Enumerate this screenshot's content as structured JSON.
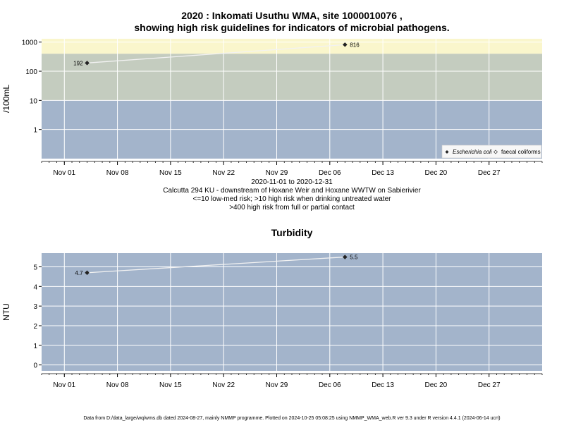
{
  "chart_data": [
    {
      "type": "line",
      "title_line1": "2020 : Inkomati Usuthu WMA, site 1000010076 ,",
      "title_line2": "showing high risk guidelines for indicators of microbial pathogens.",
      "ylabel": "/100mL",
      "yscale": "log",
      "ylim": [
        0.1,
        1300
      ],
      "yticks": [
        "1000",
        "100",
        "10",
        "1"
      ],
      "xlim": [
        "2020-10-29",
        "2021-01-03"
      ],
      "xticks": [
        "Nov 01",
        "Nov 08",
        "Nov 15",
        "Nov 22",
        "Nov 29",
        "Dec 06",
        "Dec 13",
        "Dec 20",
        "Dec 27"
      ],
      "bands": [
        {
          "from": 0.1,
          "to": 10,
          "color": "#a3b4cb",
          "label": "<=10 low-med risk"
        },
        {
          "from": 10,
          "to": 400,
          "color": "#c4ccbf",
          "label": ">10 high risk when drinking untreated water"
        },
        {
          "from": 400,
          "to": 1300,
          "color": "#faf6cc",
          "label": ">400 high risk from full or partial contact"
        }
      ],
      "series": [
        {
          "name": "Escherichia coli",
          "points": [
            {
              "x": "2020-11-04",
              "y": 192,
              "label": "192"
            },
            {
              "x": "2020-12-08",
              "y": 816,
              "label": "816"
            }
          ]
        }
      ],
      "legend": {
        "position": "bottom-right",
        "items": [
          "Escherichia coli",
          "faecal coliforms"
        ]
      },
      "subtitle_lines": [
        "2020-11-01 to 2020-12-31",
        "Calcutta 294 KU - downstream of Hoxane Weir and Hoxane WWTW on Sabierivier",
        "<=10 low-med risk; >10 high risk when drinking untreated water",
        ">400 high risk from full or partial contact"
      ],
      "grid": true
    },
    {
      "type": "line",
      "title": "Turbidity",
      "ylabel": "NTU",
      "ylim": [
        -0.3,
        5.7
      ],
      "yticks": [
        "0",
        "1",
        "2",
        "3",
        "4",
        "5"
      ],
      "xlim": [
        "2020-10-29",
        "2021-01-03"
      ],
      "xticks": [
        "Nov 01",
        "Nov 08",
        "Nov 15",
        "Nov 22",
        "Nov 29",
        "Dec 06",
        "Dec 13",
        "Dec 20",
        "Dec 27"
      ],
      "background": "#a3b4cb",
      "series": [
        {
          "name": "Turbidity",
          "points": [
            {
              "x": "2020-11-04",
              "y": 4.7,
              "label": "4.7"
            },
            {
              "x": "2020-12-08",
              "y": 5.5,
              "label": "5.5"
            }
          ]
        }
      ],
      "grid": true
    }
  ],
  "footer": "Data from D:/data_large/wq/wms.db dated 2024-08-27, mainly NMMP programme. Plotted on 2024-10-25 05:08:25 using NMMP_WMA_web.R ver 9.3 under R version 4.4.1 (2024-06-14 ucrt)"
}
